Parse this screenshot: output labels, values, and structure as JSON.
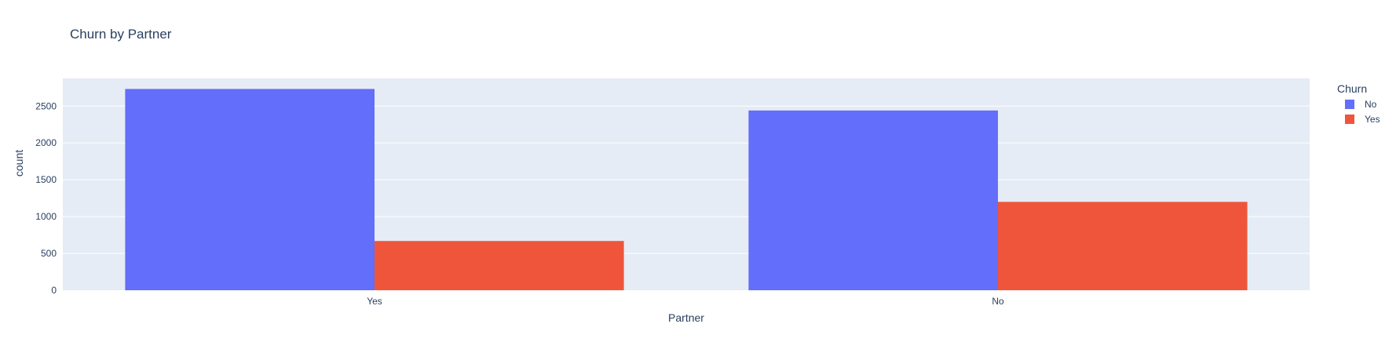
{
  "chart_data": {
    "type": "bar",
    "title": "Churn by Partner",
    "xlabel": "Partner",
    "ylabel": "count",
    "categories": [
      "Yes",
      "No"
    ],
    "series": [
      {
        "name": "No",
        "values": [
          2733,
          2441
        ],
        "color": "#636efa"
      },
      {
        "name": "Yes",
        "values": [
          669,
          1200
        ],
        "color": "#ef553b"
      }
    ],
    "ylim": [
      0,
      2876
    ],
    "yticks": [
      0,
      500,
      1000,
      1500,
      2000,
      2500
    ],
    "grid": true,
    "legend_title": "Churn",
    "legend_position": "top-right",
    "plot_background": "#e5ecf6",
    "barmode": "group"
  }
}
